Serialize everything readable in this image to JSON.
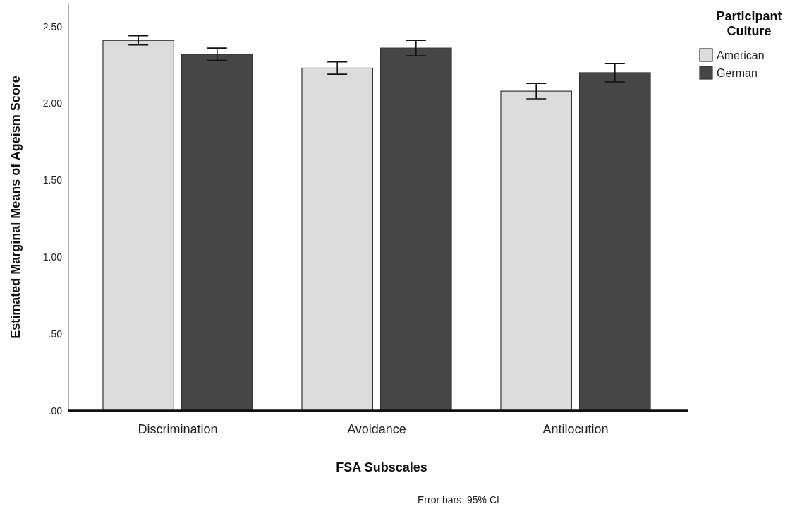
{
  "chart_data": {
    "type": "bar",
    "xlabel": "FSA Subscales",
    "ylabel": "Estimated Marginal Means of Ageism Score",
    "legend_title": "Participant Culture",
    "annotations": [
      "Error bars: 95% CI"
    ],
    "categories": [
      "Discrimination",
      "Avoidance",
      "Antilocution"
    ],
    "series": [
      {
        "name": "American",
        "color": "#dcdcdc",
        "values": [
          2.41,
          2.23,
          2.08
        ],
        "errors": [
          0.03,
          0.04,
          0.05
        ]
      },
      {
        "name": "German",
        "color": "#464646",
        "values": [
          2.32,
          2.36,
          2.2
        ],
        "errors": [
          0.04,
          0.05,
          0.06
        ]
      }
    ],
    "ylim": [
      0,
      2.65
    ],
    "yticks": [
      {
        "value": 0,
        "label": ".00"
      },
      {
        "value": 0.5,
        "label": ".50"
      },
      {
        "value": 1,
        "label": "1.00"
      },
      {
        "value": 1.5,
        "label": "1.50"
      },
      {
        "value": 2,
        "label": "2.00"
      },
      {
        "value": 2.5,
        "label": "2.50"
      }
    ],
    "legend": "top right"
  }
}
